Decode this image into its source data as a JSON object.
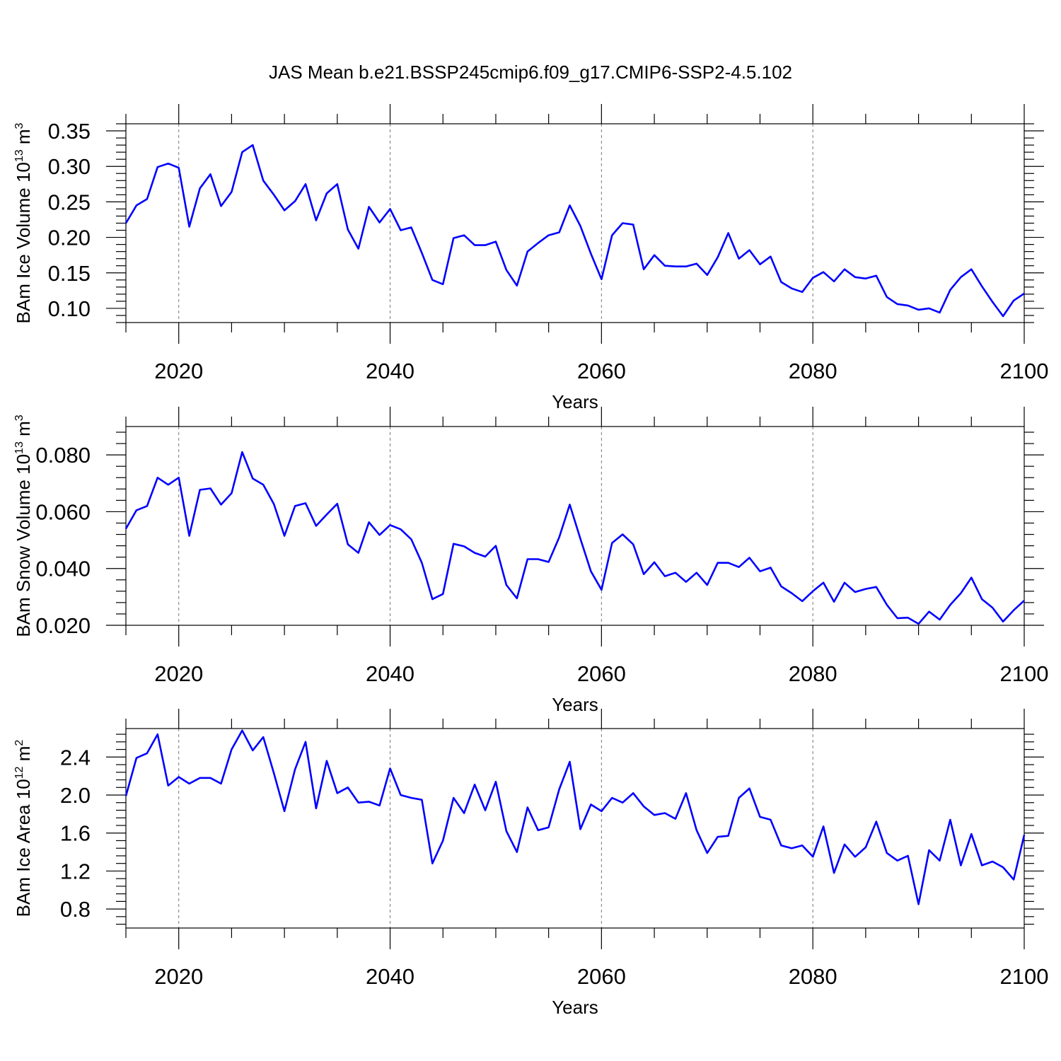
{
  "title": "JAS Mean b.e21.BSSP245cmip6.f09_g17.CMIP6-SSP2-4.5.102",
  "colors": {
    "line": "#0000ff",
    "grid": "#777777"
  },
  "chart_data": [
    {
      "type": "line",
      "ylabel": "BAm Ice Volume 10",
      "ylabel_exp": "13",
      "ylabel_unit": " m",
      "ylabel_unit_exp": "3",
      "xlabel": "Years",
      "xlim": [
        2015,
        2100
      ],
      "ylim": [
        0.08,
        0.36
      ],
      "yticks": [
        0.1,
        0.15,
        0.2,
        0.25,
        0.3,
        0.35
      ],
      "ytick_labels": [
        "0.10",
        "0.15",
        "0.20",
        "0.25",
        "0.30",
        "0.35"
      ],
      "xticks": [
        2020,
        2040,
        2060,
        2080,
        2100
      ],
      "xtick_labels": [
        "2020",
        "2040",
        "2060",
        "2080",
        "2100"
      ],
      "x_grid": true,
      "x": [
        2015,
        2016,
        2017,
        2018,
        2019,
        2020,
        2021,
        2022,
        2023,
        2024,
        2025,
        2026,
        2027,
        2028,
        2029,
        2030,
        2031,
        2032,
        2033,
        2034,
        2035,
        2036,
        2037,
        2038,
        2039,
        2040,
        2041,
        2042,
        2043,
        2044,
        2045,
        2046,
        2047,
        2048,
        2049,
        2050,
        2051,
        2052,
        2053,
        2054,
        2055,
        2056,
        2057,
        2058,
        2059,
        2060,
        2061,
        2062,
        2063,
        2064,
        2065,
        2066,
        2067,
        2068,
        2069,
        2070,
        2071,
        2072,
        2073,
        2074,
        2075,
        2076,
        2077,
        2078,
        2079,
        2080,
        2081,
        2082,
        2083,
        2084,
        2085,
        2086,
        2087,
        2088,
        2089,
        2090,
        2091,
        2092,
        2093,
        2094,
        2095,
        2096,
        2097,
        2098,
        2099,
        2100
      ],
      "series": [
        {
          "values": [
            0.22,
            0.245,
            0.254,
            0.299,
            0.304,
            0.298,
            0.215,
            0.269,
            0.289,
            0.244,
            0.264,
            0.32,
            0.33,
            0.28,
            0.26,
            0.238,
            0.251,
            0.275,
            0.224,
            0.262,
            0.275,
            0.211,
            0.184,
            0.243,
            0.221,
            0.24,
            0.21,
            0.214,
            0.178,
            0.14,
            0.134,
            0.199,
            0.203,
            0.189,
            0.189,
            0.194,
            0.154,
            0.132,
            0.18,
            0.192,
            0.203,
            0.207,
            0.245,
            0.216,
            0.177,
            0.141,
            0.203,
            0.22,
            0.218,
            0.155,
            0.175,
            0.16,
            0.159,
            0.159,
            0.163,
            0.147,
            0.172,
            0.206,
            0.17,
            0.182,
            0.162,
            0.173,
            0.137,
            0.128,
            0.123,
            0.143,
            0.151,
            0.138,
            0.155,
            0.144,
            0.142,
            0.146,
            0.116,
            0.106,
            0.104,
            0.098,
            0.1,
            0.094,
            0.126,
            0.144,
            0.155,
            0.131,
            0.109,
            0.089,
            0.111,
            0.121
          ]
        }
      ]
    },
    {
      "type": "line",
      "ylabel": "BAm Snow Volume 10",
      "ylabel_exp": "13",
      "ylabel_unit": " m",
      "ylabel_unit_exp": "3",
      "xlabel": "Years",
      "xlim": [
        2015,
        2100
      ],
      "ylim": [
        0.02,
        0.09
      ],
      "yticks": [
        0.02,
        0.04,
        0.06,
        0.08
      ],
      "ytick_labels": [
        "0.020",
        "0.040",
        "0.060",
        "0.080"
      ],
      "xticks": [
        2020,
        2040,
        2060,
        2080,
        2100
      ],
      "xtick_labels": [
        "2020",
        "2040",
        "2060",
        "2080",
        "2100"
      ],
      "x_grid": true,
      "x": [
        2015,
        2016,
        2017,
        2018,
        2019,
        2020,
        2021,
        2022,
        2023,
        2024,
        2025,
        2026,
        2027,
        2028,
        2029,
        2030,
        2031,
        2032,
        2033,
        2034,
        2035,
        2036,
        2037,
        2038,
        2039,
        2040,
        2041,
        2042,
        2043,
        2044,
        2045,
        2046,
        2047,
        2048,
        2049,
        2050,
        2051,
        2052,
        2053,
        2054,
        2055,
        2056,
        2057,
        2058,
        2059,
        2060,
        2061,
        2062,
        2063,
        2064,
        2065,
        2066,
        2067,
        2068,
        2069,
        2070,
        2071,
        2072,
        2073,
        2074,
        2075,
        2076,
        2077,
        2078,
        2079,
        2080,
        2081,
        2082,
        2083,
        2084,
        2085,
        2086,
        2087,
        2088,
        2089,
        2090,
        2091,
        2092,
        2093,
        2094,
        2095,
        2096,
        2097,
        2098,
        2099,
        2100
      ],
      "series": [
        {
          "values": [
            0.054,
            0.0605,
            0.062,
            0.072,
            0.0695,
            0.072,
            0.0515,
            0.0677,
            0.0682,
            0.0625,
            0.0665,
            0.081,
            0.0717,
            0.0695,
            0.0627,
            0.0515,
            0.062,
            0.063,
            0.055,
            0.059,
            0.0628,
            0.0485,
            0.0455,
            0.0563,
            0.0518,
            0.0553,
            0.0538,
            0.0503,
            0.042,
            0.0292,
            0.031,
            0.0487,
            0.0478,
            0.0455,
            0.0442,
            0.048,
            0.0342,
            0.0295,
            0.0433,
            0.0433,
            0.0423,
            0.051,
            0.0625,
            0.0505,
            0.039,
            0.0325,
            0.049,
            0.052,
            0.0485,
            0.038,
            0.0422,
            0.0373,
            0.0385,
            0.0353,
            0.0385,
            0.0342,
            0.042,
            0.042,
            0.0405,
            0.0438,
            0.039,
            0.0403,
            0.0337,
            0.0313,
            0.0285,
            0.032,
            0.035,
            0.0283,
            0.035,
            0.0317,
            0.0328,
            0.0335,
            0.0272,
            0.0225,
            0.0227,
            0.0205,
            0.0248,
            0.022,
            0.0272,
            0.0313,
            0.0368,
            0.0292,
            0.0262,
            0.0213,
            0.0253,
            0.0287
          ]
        }
      ]
    },
    {
      "type": "line",
      "ylabel": "BAm Ice Area 10",
      "ylabel_exp": "12",
      "ylabel_unit": " m",
      "ylabel_unit_exp": "2",
      "xlabel": "Years",
      "xlim": [
        2015,
        2100
      ],
      "ylim": [
        0.6,
        2.7
      ],
      "yticks": [
        0.8,
        1.2,
        1.6,
        2.0,
        2.4
      ],
      "ytick_labels": [
        "0.8",
        "1.2",
        "1.6",
        "2.0",
        "2.4"
      ],
      "xticks": [
        2020,
        2040,
        2060,
        2080,
        2100
      ],
      "xtick_labels": [
        "2020",
        "2040",
        "2060",
        "2080",
        "2100"
      ],
      "x_grid": true,
      "x": [
        2015,
        2016,
        2017,
        2018,
        2019,
        2020,
        2021,
        2022,
        2023,
        2024,
        2025,
        2026,
        2027,
        2028,
        2029,
        2030,
        2031,
        2032,
        2033,
        2034,
        2035,
        2036,
        2037,
        2038,
        2039,
        2040,
        2041,
        2042,
        2043,
        2044,
        2045,
        2046,
        2047,
        2048,
        2049,
        2050,
        2051,
        2052,
        2053,
        2054,
        2055,
        2056,
        2057,
        2058,
        2059,
        2060,
        2061,
        2062,
        2063,
        2064,
        2065,
        2066,
        2067,
        2068,
        2069,
        2070,
        2071,
        2072,
        2073,
        2074,
        2075,
        2076,
        2077,
        2078,
        2079,
        2080,
        2081,
        2082,
        2083,
        2084,
        2085,
        2086,
        2087,
        2088,
        2089,
        2090,
        2091,
        2092,
        2093,
        2094,
        2095,
        2096,
        2097,
        2098,
        2099,
        2100
      ],
      "series": [
        {
          "values": [
            1.99,
            2.39,
            2.44,
            2.64,
            2.1,
            2.19,
            2.12,
            2.18,
            2.18,
            2.12,
            2.48,
            2.68,
            2.47,
            2.61,
            2.23,
            1.83,
            2.27,
            2.56,
            1.86,
            2.36,
            2.02,
            2.08,
            1.92,
            1.93,
            1.89,
            2.28,
            2.0,
            1.97,
            1.95,
            1.28,
            1.52,
            1.97,
            1.81,
            2.11,
            1.84,
            2.14,
            1.62,
            1.4,
            1.87,
            1.63,
            1.66,
            2.06,
            2.35,
            1.64,
            1.9,
            1.83,
            1.97,
            1.92,
            2.02,
            1.88,
            1.79,
            1.81,
            1.75,
            2.02,
            1.63,
            1.39,
            1.56,
            1.57,
            1.97,
            2.07,
            1.77,
            1.74,
            1.47,
            1.44,
            1.47,
            1.35,
            1.67,
            1.18,
            1.48,
            1.35,
            1.45,
            1.72,
            1.39,
            1.31,
            1.36,
            0.85,
            1.42,
            1.31,
            1.74,
            1.26,
            1.59,
            1.26,
            1.3,
            1.24,
            1.11,
            1.58
          ]
        }
      ]
    }
  ]
}
